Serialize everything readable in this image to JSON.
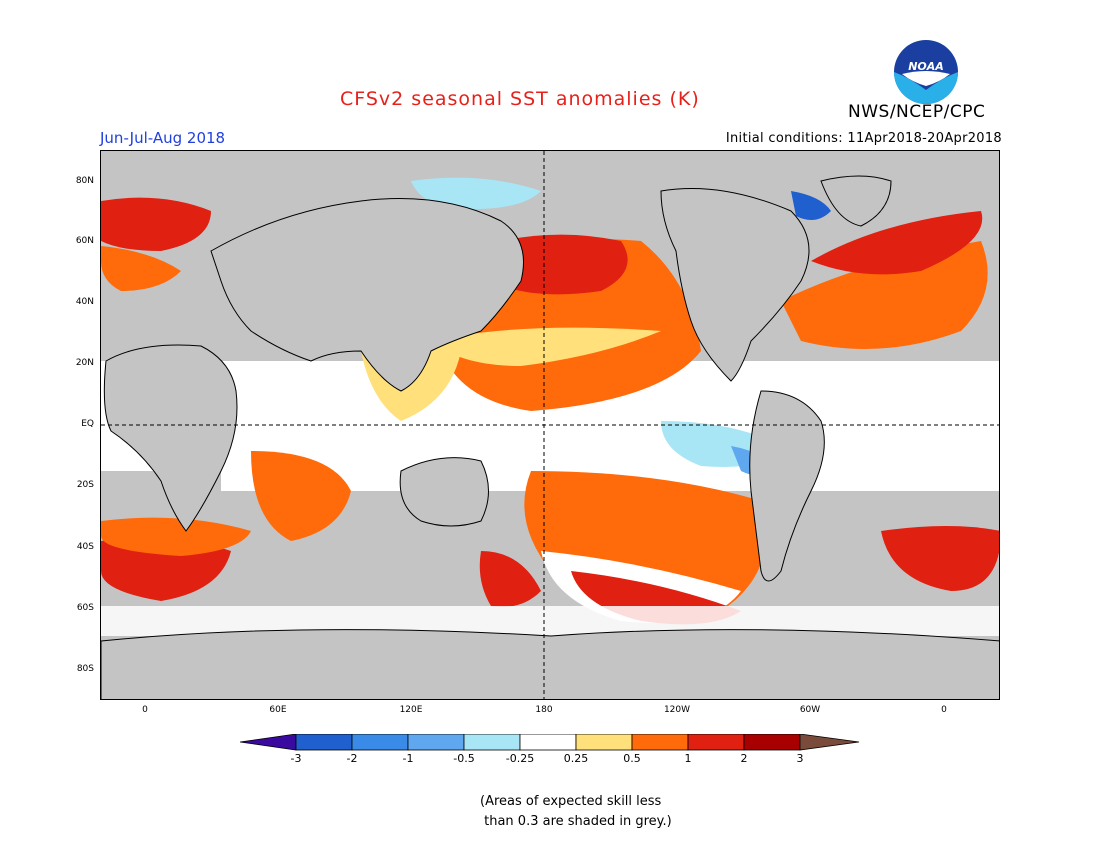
{
  "header": {
    "title": "CFSv2 seasonal SST anomalies (K)",
    "agency": "NWS/NCEP/CPC",
    "logo_text": "NOAA",
    "season": "Jun-Jul-Aug 2018",
    "initial_conditions": "Initial conditions: 11Apr2018-20Apr2018"
  },
  "map": {
    "lat_labels": [
      "80N",
      "60N",
      "40N",
      "20N",
      "EQ",
      "20S",
      "40S",
      "60S",
      "80S"
    ],
    "lon_labels": [
      "0",
      "60E",
      "120E",
      "180",
      "120W",
      "60W",
      "0"
    ],
    "land_color": "#c4c4c4",
    "reference_lines": [
      "equator",
      "dateline"
    ]
  },
  "colorbar": {
    "labels": [
      "-3",
      "-2",
      "-1",
      "-0.5",
      "-0.25",
      "0.25",
      "0.5",
      "1",
      "2",
      "3"
    ],
    "colors": [
      "#3a0aa0",
      "#1f5fce",
      "#3a8be8",
      "#5fa8f0",
      "#a8e6f6",
      "#ffffff",
      "#ffe07a",
      "#ff6a0a",
      "#e02010",
      "#a80000",
      "#7a4a3a"
    ]
  },
  "footnote": "(Areas of expected skill less\n than 0.3 are shaded in grey.)"
}
